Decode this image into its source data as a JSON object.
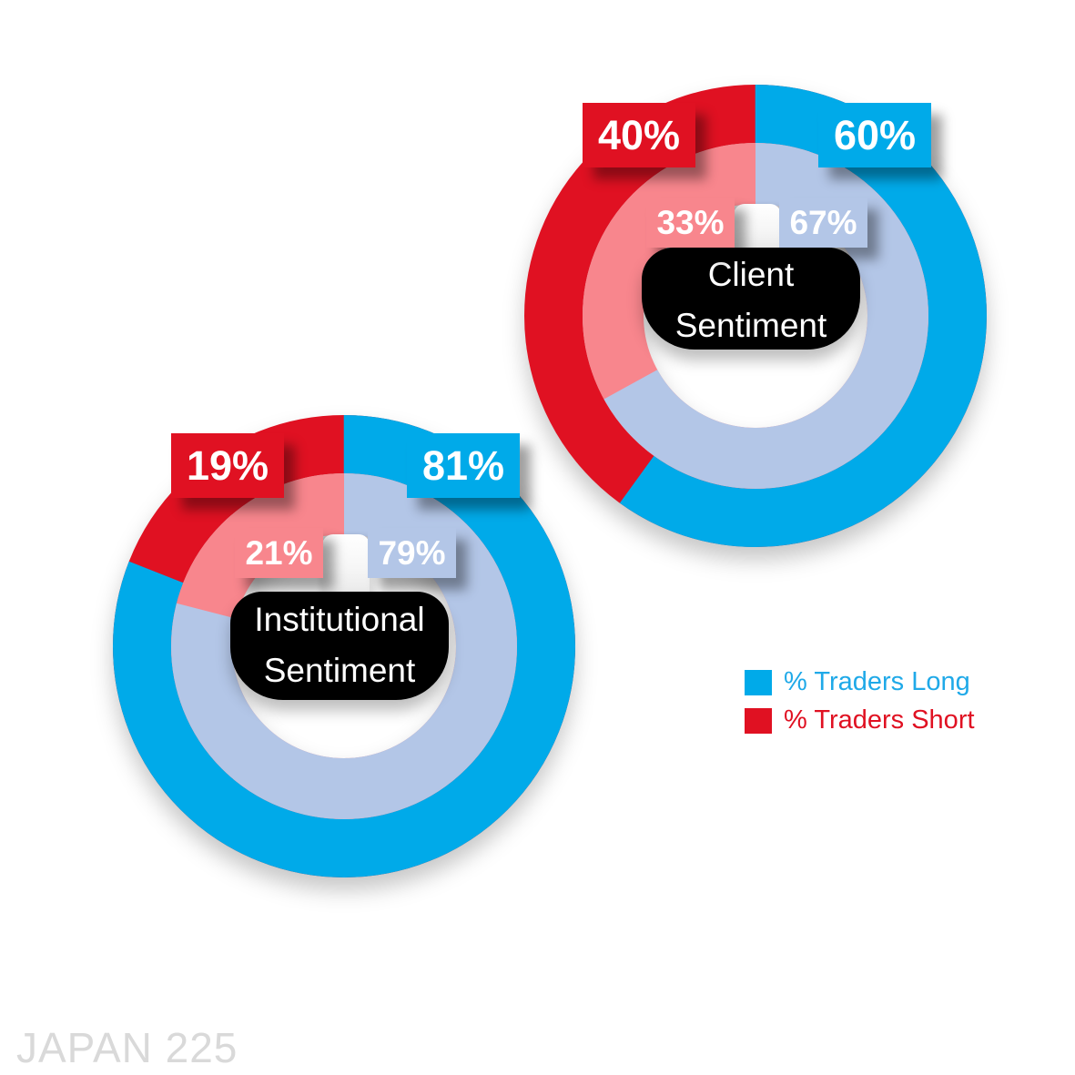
{
  "watermark": "JAPAN 225",
  "colors": {
    "long": "#00AAE9",
    "short": "#E01122",
    "long_inner": "#B3C6E7",
    "short_inner": "#F8868D",
    "label_text": "#FFFFFF",
    "center_box_bg": "#000000",
    "center_box_text": "#FFFFFF",
    "watermark_color": "#D9D9D9"
  },
  "legend": {
    "items": [
      {
        "label": "% Traders Long",
        "swatch": "#00AAE9",
        "text_color": "#1FA9E8"
      },
      {
        "label": "% Traders Short",
        "swatch": "#E01122",
        "text_color": "#E01122"
      }
    ]
  },
  "chart_data": [
    {
      "type": "donut",
      "name": "client-sentiment",
      "title_line1": "Client",
      "title_line2": "Sentiment",
      "outer_ring": {
        "label": "% Traders Long / Short",
        "long_pct": 60,
        "short_pct": 40
      },
      "inner_ring": {
        "long_pct": 67,
        "short_pct": 33
      },
      "labels": {
        "outer_long": "60%",
        "outer_short": "40%",
        "inner_long": "67%",
        "inner_short": "33%"
      },
      "start_angle_deg": 0,
      "direction": "clockwise"
    },
    {
      "type": "donut",
      "name": "institutional-sentiment",
      "title_line1": "Institutional",
      "title_line2": "Sentiment",
      "outer_ring": {
        "label": "% Traders Long / Short",
        "long_pct": 81,
        "short_pct": 19
      },
      "inner_ring": {
        "long_pct": 79,
        "short_pct": 21
      },
      "labels": {
        "outer_long": "81%",
        "outer_short": "19%",
        "inner_long": "79%",
        "inner_short": "21%"
      },
      "start_angle_deg": 0,
      "direction": "clockwise"
    }
  ]
}
